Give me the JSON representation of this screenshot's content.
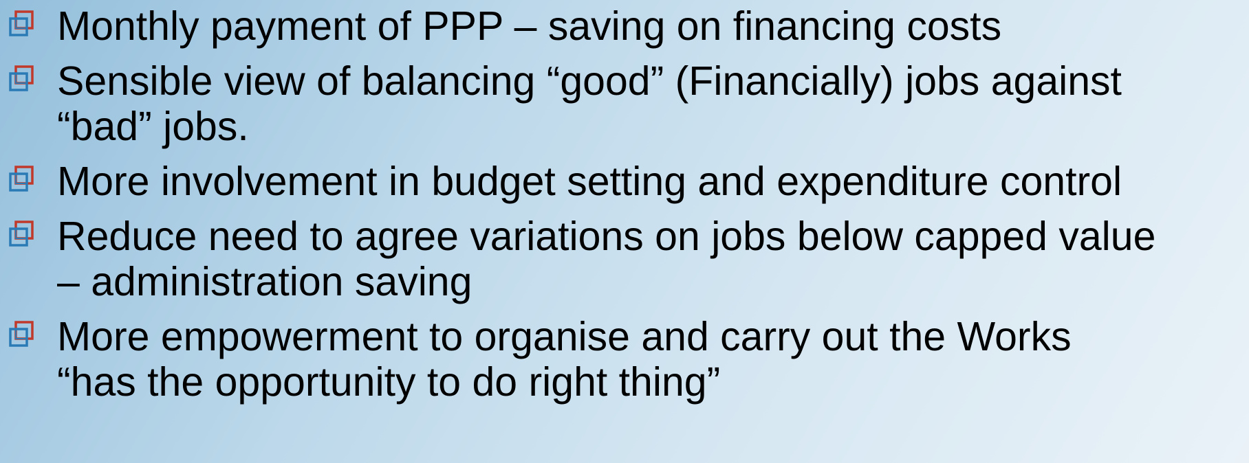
{
  "items": [
    {
      "lines": [
        "Monthly payment of PPP – saving on financing costs"
      ]
    },
    {
      "lines": [
        "Sensible view of balancing “good” (Financially) jobs against",
        "“bad” jobs."
      ]
    },
    {
      "lines": [
        "More involvement in budget setting and expenditure control"
      ]
    },
    {
      "lines": [
        "Reduce need to agree variations on jobs below capped value",
        "– administration saving"
      ]
    },
    {
      "lines": [
        "More empowerment to organise and carry out the Works",
        "“has the opportunity to do right thing”"
      ]
    }
  ]
}
